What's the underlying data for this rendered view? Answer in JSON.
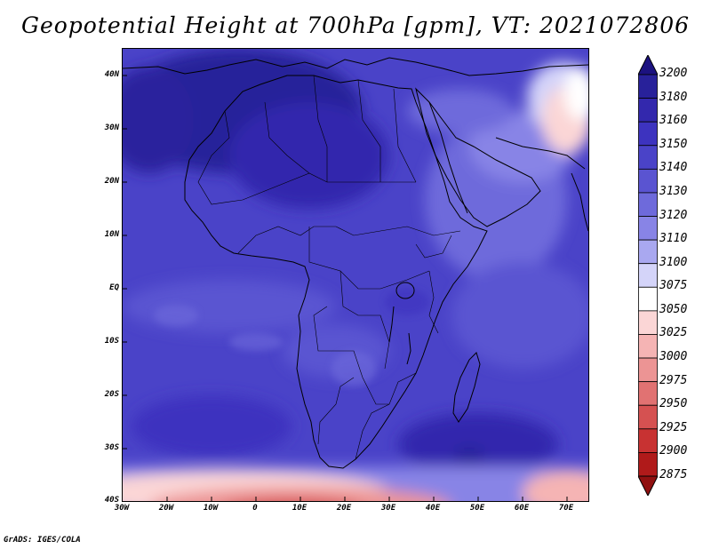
{
  "title": "Geopotential Height at 700hPa [gpm], VT: 2021072806",
  "credit": "GrADS: IGES/COLA",
  "lat_labels": [
    "40N",
    "30N",
    "20N",
    "10N",
    "EQ",
    "10S",
    "20S",
    "30S",
    "40S"
  ],
  "lon_labels": [
    "30W",
    "20W",
    "10W",
    "0",
    "10E",
    "20E",
    "30E",
    "40E",
    "50E",
    "60E",
    "70E"
  ],
  "colorbar": {
    "levels": [
      "3200",
      "3180",
      "3160",
      "3150",
      "3140",
      "3130",
      "3120",
      "3110",
      "3100",
      "3075",
      "3050",
      "3025",
      "3000",
      "2975",
      "2950",
      "2925",
      "2900",
      "2875"
    ],
    "colors": [
      "#1c1280",
      "#28219a",
      "#3328ad",
      "#3d33bf",
      "#4a43c8",
      "#5a54d1",
      "#6e6adb",
      "#8884e6",
      "#a9a8f0",
      "#d4d4f9",
      "#ffffff",
      "#fbd6d6",
      "#f5b4b4",
      "#ec9494",
      "#e17272",
      "#d55151",
      "#c83232",
      "#b01a1a",
      "#901010"
    ]
  },
  "map": {
    "projection": "lat-lon",
    "extent": {
      "lon_min": -30,
      "lon_max": 75,
      "lat_min": -40,
      "lat_max": 45
    },
    "field": "Geopotential Height at 700hPa",
    "units": "gpm"
  }
}
